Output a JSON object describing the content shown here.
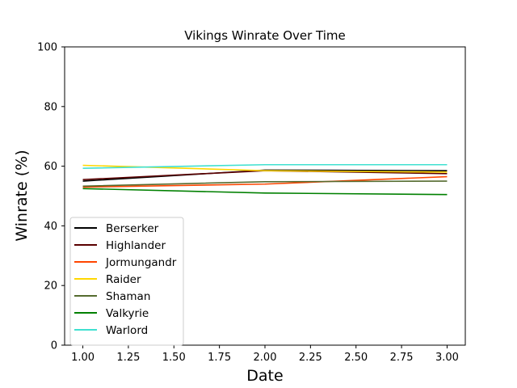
{
  "chart_data": {
    "type": "line",
    "title": "Vikings Winrate Over Time",
    "xlabel": "Date",
    "ylabel": "Winrate (%)",
    "xlim": [
      0.9,
      3.1
    ],
    "ylim": [
      0,
      100
    ],
    "xticks": [
      "1.00",
      "1.25",
      "1.50",
      "1.75",
      "2.00",
      "2.25",
      "2.50",
      "2.75",
      "3.00"
    ],
    "yticks": [
      "0",
      "20",
      "40",
      "60",
      "80",
      "100"
    ],
    "legend_position": "lower-left",
    "grid": false,
    "x": [
      1,
      2,
      3
    ],
    "series": [
      {
        "name": "Berserker",
        "color": "#000000",
        "values": [
          55.0,
          58.7,
          58.5
        ]
      },
      {
        "name": "Highlander",
        "color": "#5a0000",
        "values": [
          55.5,
          58.5,
          57.5
        ]
      },
      {
        "name": "Jormungandr",
        "color": "#ff4500",
        "values": [
          53.0,
          54.0,
          56.5
        ]
      },
      {
        "name": "Raider",
        "color": "#ffd700",
        "values": [
          60.3,
          58.5,
          58.0
        ]
      },
      {
        "name": "Shaman",
        "color": "#556b2f",
        "values": [
          53.3,
          54.8,
          55.0
        ]
      },
      {
        "name": "Valkyrie",
        "color": "#008000",
        "values": [
          52.5,
          51.0,
          50.5
        ]
      },
      {
        "name": "Warlord",
        "color": "#40e0d0",
        "values": [
          59.3,
          60.5,
          60.5
        ]
      }
    ]
  }
}
